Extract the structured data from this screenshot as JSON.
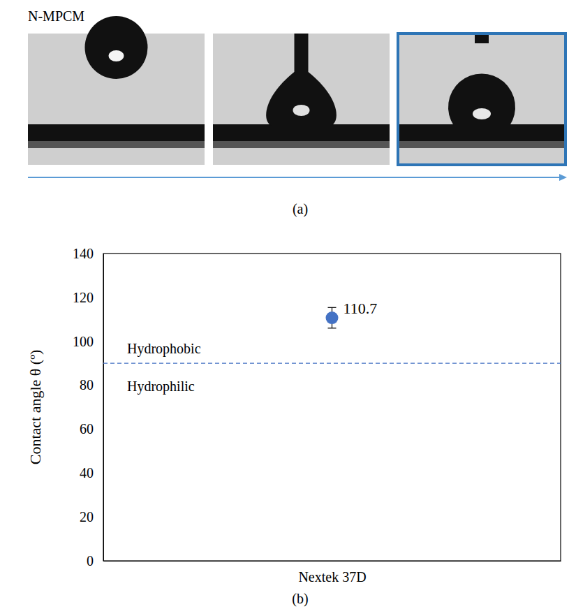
{
  "panel_a": {
    "title": "N-MPCM",
    "label": "(a)"
  },
  "chart_data": {
    "type": "scatter",
    "panel_label": "(b)",
    "y_label": "Contact angle θ (º)",
    "categories": [
      "Nextek 37D"
    ],
    "values": [
      110.7
    ],
    "errors": [
      4.7
    ],
    "color": "#4472c4",
    "marker": "circle",
    "data_labels": true,
    "threshold": 90,
    "annotations": [
      "Hydrophobic",
      "Hydrophilic"
    ],
    "ylim": [
      0,
      140
    ],
    "yticks": [
      0,
      20,
      40,
      60,
      80,
      100,
      120,
      140
    ],
    "grid": false
  }
}
